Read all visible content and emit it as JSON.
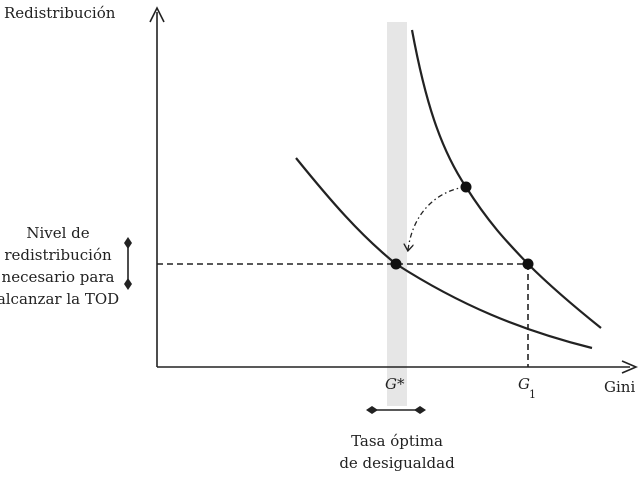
{
  "axes": {
    "y_label": "Redistribución",
    "x_label": "Gini"
  },
  "markers": {
    "g_star": "G*",
    "g1_base": "G",
    "g1_sub": "1"
  },
  "left_annotation": {
    "lines": [
      "Nivel de",
      "redistribución",
      "necesario para",
      "alcanzar la TOD"
    ]
  },
  "bottom_annotation": {
    "lines": [
      "Tasa óptima",
      "de desigualdad"
    ]
  },
  "colors": {
    "line": "#222222",
    "band": "#e6e6e6"
  }
}
